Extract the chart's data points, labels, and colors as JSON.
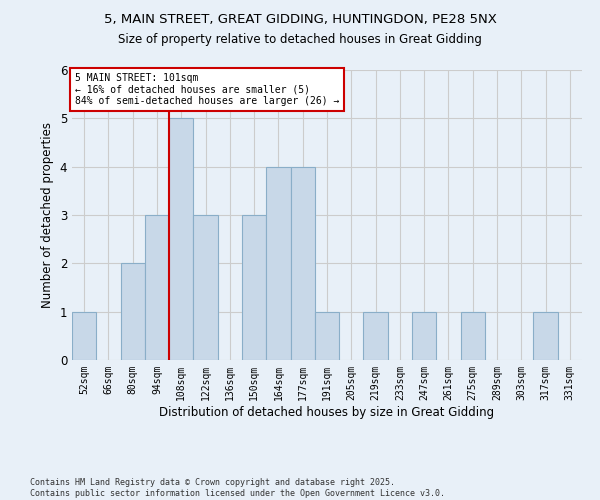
{
  "title1": "5, MAIN STREET, GREAT GIDDING, HUNTINGDON, PE28 5NX",
  "title2": "Size of property relative to detached houses in Great Gidding",
  "xlabel": "Distribution of detached houses by size in Great Gidding",
  "ylabel": "Number of detached properties",
  "bins": [
    "52sqm",
    "66sqm",
    "80sqm",
    "94sqm",
    "108sqm",
    "122sqm",
    "136sqm",
    "150sqm",
    "164sqm",
    "177sqm",
    "191sqm",
    "205sqm",
    "219sqm",
    "233sqm",
    "247sqm",
    "261sqm",
    "275sqm",
    "289sqm",
    "303sqm",
    "317sqm",
    "331sqm"
  ],
  "counts": [
    1,
    0,
    2,
    3,
    5,
    3,
    0,
    3,
    4,
    4,
    1,
    0,
    1,
    0,
    1,
    0,
    1,
    0,
    0,
    1,
    0
  ],
  "bar_color": "#c8d8e8",
  "bar_edge_color": "#8aaec8",
  "subject_label": "5 MAIN STREET: 101sqm",
  "annotation_line1": "← 16% of detached houses are smaller (5)",
  "annotation_line2": "84% of semi-detached houses are larger (26) →",
  "annotation_box_color": "#ffffff",
  "annotation_box_edge": "#cc0000",
  "subject_line_color": "#cc0000",
  "footer": "Contains HM Land Registry data © Crown copyright and database right 2025.\nContains public sector information licensed under the Open Government Licence v3.0.",
  "ylim": [
    0,
    6
  ],
  "grid_color": "#cccccc",
  "bg_color": "#e8f0f8"
}
